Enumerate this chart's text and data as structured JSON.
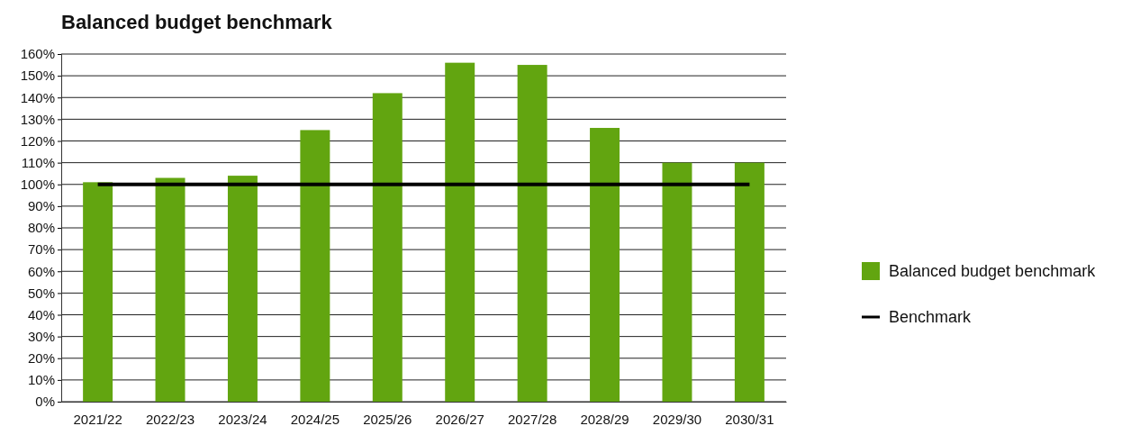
{
  "chart_data": {
    "type": "bar",
    "title": "Balanced budget benchmark",
    "categories": [
      "2021/22",
      "2022/23",
      "2023/24",
      "2024/25",
      "2025/26",
      "2026/27",
      "2027/28",
      "2028/29",
      "2029/30",
      "2030/31"
    ],
    "series": [
      {
        "name": "Balanced budget benchmark",
        "color": "#62a510",
        "values": [
          101,
          103,
          104,
          125,
          142,
          156,
          155,
          126,
          110,
          110
        ]
      },
      {
        "name": "Benchmark",
        "type": "line",
        "color": "#000000",
        "values": [
          100,
          100,
          100,
          100,
          100,
          100,
          100,
          100,
          100,
          100
        ]
      }
    ],
    "ylim": [
      0,
      160
    ],
    "yticks": [
      {
        "value": 0,
        "label": "0%"
      },
      {
        "value": 10,
        "label": "10%"
      },
      {
        "value": 20,
        "label": "20%"
      },
      {
        "value": 30,
        "label": "30%"
      },
      {
        "value": 40,
        "label": "40%"
      },
      {
        "value": 50,
        "label": "50%"
      },
      {
        "value": 60,
        "label": "60%"
      },
      {
        "value": 70,
        "label": "70%"
      },
      {
        "value": 80,
        "label": "80%"
      },
      {
        "value": 90,
        "label": "90%"
      },
      {
        "value": 100,
        "label": "100%"
      },
      {
        "value": 110,
        "label": "110%"
      },
      {
        "value": 120,
        "label": "120%"
      },
      {
        "value": 130,
        "label": "130%"
      },
      {
        "value": 140,
        "label": "140%"
      },
      {
        "value": 150,
        "label": "150%"
      },
      {
        "value": 160,
        "label": "160%"
      }
    ],
    "grid": "y",
    "legend": "right"
  }
}
